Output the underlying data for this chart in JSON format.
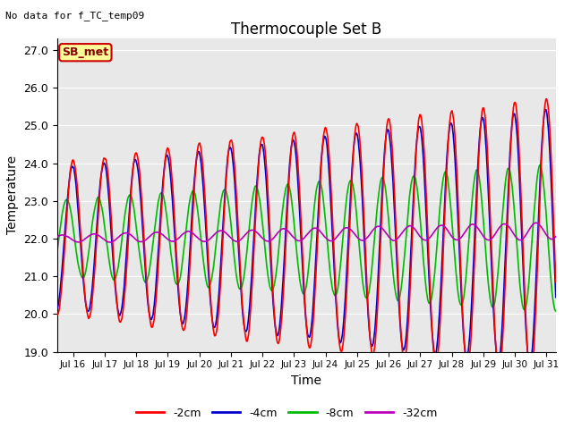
{
  "title": "Thermocouple Set B",
  "top_left_text": "No data for f_TC_temp09",
  "annotation_text": "SB_met",
  "xlabel": "Time",
  "ylabel": "Temperature",
  "xlim_days": [
    15.5,
    31.3
  ],
  "ylim": [
    19.0,
    27.3
  ],
  "yticks": [
    19.0,
    20.0,
    21.0,
    22.0,
    23.0,
    24.0,
    25.0,
    26.0,
    27.0
  ],
  "xtick_labels": [
    "Jul 16",
    "Jul 17",
    "Jul 18",
    "Jul 19",
    "Jul 20",
    "Jul 21",
    "Jul 22",
    "Jul 23",
    "Jul 24",
    "Jul 25",
    "Jul 26",
    "Jul 27",
    "Jul 28",
    "Jul 29",
    "Jul 30",
    "Jul 31"
  ],
  "xtick_days": [
    16,
    17,
    18,
    19,
    20,
    21,
    22,
    23,
    24,
    25,
    26,
    27,
    28,
    29,
    30,
    31
  ],
  "colors": {
    "-2cm": "#ff0000",
    "-4cm": "#0000cc",
    "-8cm": "#00bb00",
    "-32cm": "#bb00bb"
  },
  "background_color": "#e8e8e8",
  "figure_bg": "#ffffff",
  "grid_color": "#ffffff",
  "annotation_bg": "#ffff99",
  "annotation_border": "#cc0000",
  "annotation_text_color": "#8B0000"
}
